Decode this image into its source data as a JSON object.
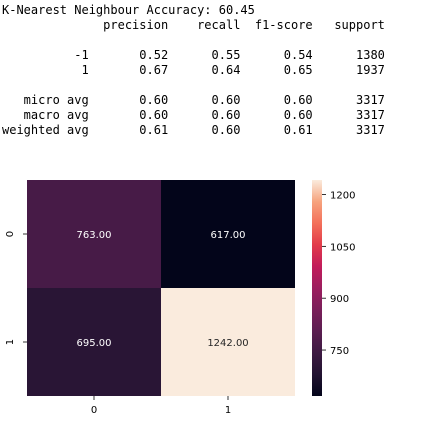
{
  "report": {
    "lines": [
      "K-Nearest Neighbour Accuracy: 60.45",
      "              precision    recall  f1-score   support",
      "",
      "          -1       0.52      0.55      0.54      1380",
      "           1       0.67      0.64      0.65      1937",
      "",
      "   micro avg       0.60      0.60      0.60      3317",
      "   macro avg       0.60      0.60      0.60      3317",
      "weighted avg       0.61      0.60      0.61      3317"
    ]
  },
  "chart_data": {
    "type": "heatmap",
    "title": "",
    "xlabel": "",
    "ylabel": "",
    "x_categories": [
      "0",
      "1"
    ],
    "y_categories": [
      "0",
      "1"
    ],
    "values": [
      [
        763,
        617
      ],
      [
        695,
        1242
      ]
    ],
    "cell_labels": [
      [
        "763.00",
        "617.00"
      ],
      [
        "695.00",
        "1242.00"
      ]
    ],
    "colormap": "rocket",
    "colorbar": {
      "ticks": [
        750,
        900,
        1050,
        1200
      ],
      "tick_labels": [
        "750",
        "900",
        "1050",
        "1200"
      ],
      "range": [
        617,
        1242
      ]
    },
    "grid": false,
    "legend": "colorbar-right"
  }
}
